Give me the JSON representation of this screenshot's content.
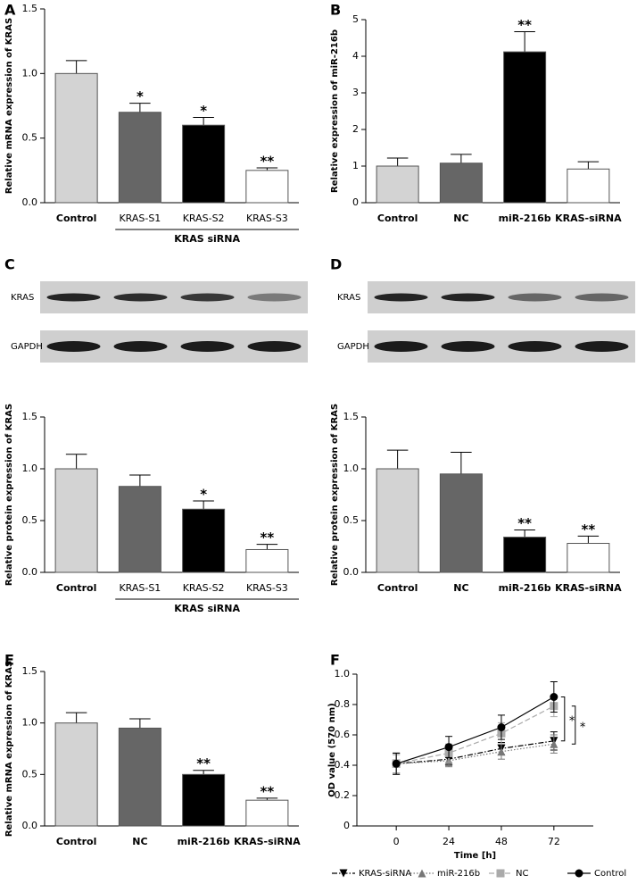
{
  "chart_data": [
    {
      "type": "bar",
      "panel": "A",
      "ylabel": "Relative mRNA expression of KRAS",
      "categories": [
        "Control",
        "KRAS-S1",
        "KRAS-S2",
        "KRAS-S3"
      ],
      "group_label": "KRAS siRNA",
      "values": [
        1.0,
        0.7,
        0.6,
        0.25
      ],
      "errors": [
        0.1,
        0.07,
        0.06,
        0.02
      ],
      "value_annotations": [
        null,
        "*",
        "*",
        "**"
      ],
      "colors": [
        "#d3d3d3",
        "#666666",
        "#000000",
        "#ffffff"
      ],
      "ylim": [
        0,
        1.5
      ],
      "yticks": [
        {
          "value": 0,
          "label": "0.0"
        },
        0.5,
        {
          "value": 1,
          "label": "1.0"
        },
        1.5
      ]
    },
    {
      "type": "bar",
      "panel": "B",
      "ylabel": "Relative expression of miR-216b",
      "categories": [
        "Control",
        "NC",
        "miR-216b",
        "KRAS-siRNA"
      ],
      "values": [
        1.0,
        1.08,
        4.12,
        0.92
      ],
      "errors": [
        0.22,
        0.24,
        0.55,
        0.2
      ],
      "value_annotations": [
        null,
        null,
        "**",
        null
      ],
      "colors": [
        "#d3d3d3",
        "#666666",
        "#000000",
        "#ffffff"
      ],
      "ylim": [
        0,
        5
      ],
      "yticks": [
        0,
        1,
        2,
        3,
        4,
        5
      ]
    },
    {
      "type": "bar",
      "panel": "C",
      "ylabel": "Relative protein expression of KRAS",
      "blot_labels": [
        "KRAS",
        "GAPDH"
      ],
      "categories": [
        "Control",
        "KRAS-S1",
        "KRAS-S2",
        "KRAS-S3"
      ],
      "group_label": "KRAS siRNA",
      "values": [
        1.0,
        0.83,
        0.61,
        0.22
      ],
      "errors": [
        0.14,
        0.11,
        0.08,
        0.05
      ],
      "value_annotations": [
        null,
        null,
        "*",
        "**"
      ],
      "colors": [
        "#d3d3d3",
        "#666666",
        "#000000",
        "#ffffff"
      ],
      "ylim": [
        0,
        1.5
      ],
      "yticks": [
        {
          "value": 0,
          "label": "0.0"
        },
        0.5,
        {
          "value": 1,
          "label": "1.0"
        },
        1.5
      ]
    },
    {
      "type": "bar",
      "panel": "D",
      "ylabel": "Relative protein expression of KRAS",
      "blot_labels": [
        "KRAS",
        "GAPDH"
      ],
      "categories": [
        "Control",
        "NC",
        "miR-216b",
        "KRAS-siRNA"
      ],
      "values": [
        1.0,
        0.95,
        0.34,
        0.28
      ],
      "errors": [
        0.18,
        0.21,
        0.07,
        0.07
      ],
      "value_annotations": [
        null,
        null,
        "**",
        "**"
      ],
      "colors": [
        "#d3d3d3",
        "#666666",
        "#000000",
        "#ffffff"
      ],
      "ylim": [
        0,
        1.5
      ],
      "yticks": [
        {
          "value": 0,
          "label": "0.0"
        },
        0.5,
        {
          "value": 1,
          "label": "1.0"
        },
        1.5
      ]
    },
    {
      "type": "bar",
      "panel": "E",
      "ylabel": "Relative mRNA expression of KRAS",
      "categories": [
        "Control",
        "NC",
        "miR-216b",
        "KRAS-siRNA"
      ],
      "values": [
        1.0,
        0.95,
        0.5,
        0.25
      ],
      "errors": [
        0.1,
        0.09,
        0.04,
        0.02
      ],
      "value_annotations": [
        null,
        null,
        "**",
        "**"
      ],
      "colors": [
        "#d3d3d3",
        "#666666",
        "#000000",
        "#ffffff"
      ],
      "ylim": [
        0,
        1.5
      ],
      "yticks": [
        {
          "value": 0,
          "label": "0.0"
        },
        0.5,
        {
          "value": 1,
          "label": "1.0"
        },
        1.5
      ]
    },
    {
      "type": "line",
      "panel": "F",
      "ylabel": "OD value (570 nm)",
      "xlabel": "Time [h]",
      "x": [
        0,
        24,
        48,
        72
      ],
      "xlim": [
        -18,
        90
      ],
      "xticks": [
        0,
        24,
        48,
        72
      ],
      "ylim": [
        0,
        1
      ],
      "yticks": [
        0,
        0.2,
        0.4,
        0.6,
        0.8,
        {
          "value": 1,
          "label": "1.0"
        }
      ],
      "series": [
        {
          "name": "KRAS-siRNA",
          "color": "#000000",
          "marker": "triangle-down",
          "dash": "dashdot",
          "values": [
            0.41,
            0.44,
            0.51,
            0.56
          ],
          "errors": [
            0.07,
            0.04,
            0.04,
            0.06
          ]
        },
        {
          "name": "miR-216b",
          "color": "#777777",
          "marker": "triangle",
          "dash": "dotted",
          "values": [
            0.41,
            0.43,
            0.49,
            0.54
          ],
          "errors": [
            0.06,
            0.04,
            0.05,
            0.06
          ]
        },
        {
          "name": "NC",
          "color": "#aaaaaa",
          "marker": "square",
          "dash": "dashed",
          "values": [
            0.41,
            0.48,
            0.61,
            0.79
          ],
          "errors": [
            0.06,
            0.06,
            0.07,
            0.07
          ]
        },
        {
          "name": "Control",
          "color": "#000000",
          "marker": "circle",
          "dash": "solid",
          "values": [
            0.41,
            0.52,
            0.65,
            0.85
          ],
          "errors": [
            0.07,
            0.07,
            0.08,
            0.1
          ]
        }
      ],
      "significance": [
        "*",
        "*"
      ],
      "legend": "bottom"
    }
  ]
}
